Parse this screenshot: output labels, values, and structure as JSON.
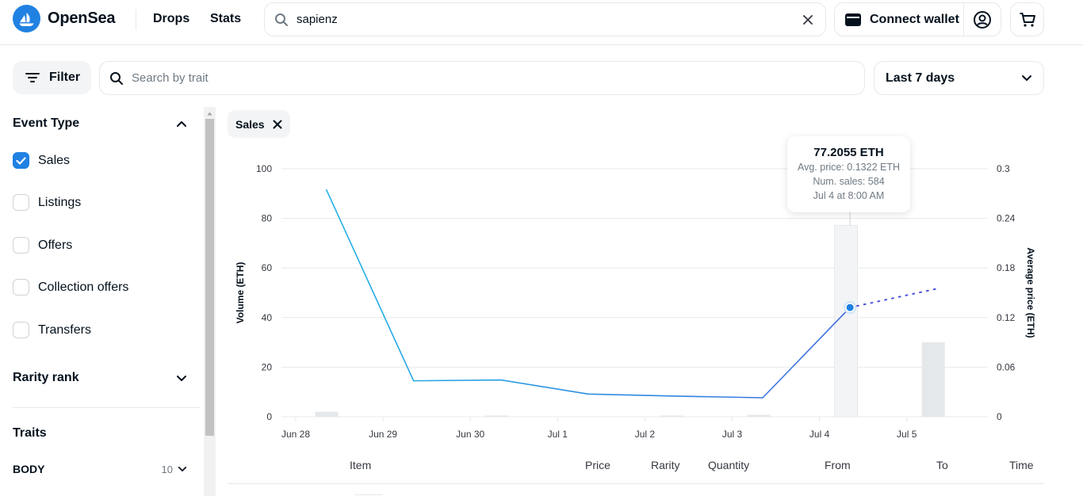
{
  "header": {
    "brand": "OpenSea",
    "nav": [
      "Drops",
      "Stats"
    ],
    "search_value": "sapienz",
    "connect_wallet": "Connect wallet"
  },
  "toolbar": {
    "filter_label": "Filter",
    "trait_search_placeholder": "Search by trait",
    "period": "Last 7 days"
  },
  "sidebar": {
    "event_type_title": "Event Type",
    "events": [
      {
        "label": "Sales",
        "checked": true
      },
      {
        "label": "Listings",
        "checked": false
      },
      {
        "label": "Offers",
        "checked": false
      },
      {
        "label": "Collection offers",
        "checked": false
      },
      {
        "label": "Transfers",
        "checked": false
      }
    ],
    "rarity_title": "Rarity rank",
    "traits_title": "Traits",
    "trait_rows": [
      {
        "label": "BODY",
        "count": "10"
      }
    ]
  },
  "filter_chip": "Sales",
  "tooltip": {
    "title": "77.2055 ETH",
    "avg_price": "Avg. price: 0.1322 ETH",
    "num_sales": "Num. sales: 584",
    "date": "Jul 4 at 8:00 AM"
  },
  "table_headers": [
    "Item",
    "Price",
    "Rarity",
    "Quantity",
    "From",
    "To",
    "Time"
  ],
  "colors": {
    "accent": "#2081e2",
    "line_blue": "#22b8e8",
    "line_indigo": "#4f55d8",
    "bar": "#e5e8eb"
  },
  "chart_data": {
    "type": "bar",
    "x_ticks": [
      "Jun 28",
      "Jun 29",
      "Jun 30",
      "Jul 1",
      "Jul 2",
      "Jul 3",
      "Jul 4",
      "Jul 5"
    ],
    "ylabel": "Volume (ETH)",
    "ylabel_right": "Average price (ETH)",
    "ylim": [
      0,
      100
    ],
    "ylim_right": [
      0,
      0.3
    ],
    "y_ticks": [
      0,
      20,
      40,
      60,
      80,
      100
    ],
    "y_ticks_right": [
      0,
      0.06,
      0.12,
      0.18,
      0.24,
      0.3
    ],
    "volume_bars": [
      {
        "x": 0.35,
        "value": 2
      },
      {
        "x": 2.3,
        "value": 0.5
      },
      {
        "x": 4.3,
        "value": 0.5
      },
      {
        "x": 5.3,
        "value": 0.8
      },
      {
        "x": 6.3,
        "value": 77.2055
      },
      {
        "x": 7.3,
        "value": 30
      }
    ],
    "avg_price_line": [
      {
        "x": 0.35,
        "y": 0.275
      },
      {
        "x": 1.35,
        "y": 0.0435
      },
      {
        "x": 2.35,
        "y": 0.0445
      },
      {
        "x": 3.35,
        "y": 0.0275
      },
      {
        "x": 4.35,
        "y": 0.025
      },
      {
        "x": 5.35,
        "y": 0.023
      },
      {
        "x": 6.35,
        "y": 0.1322
      },
      {
        "x": 7.35,
        "y": 0.155
      }
    ],
    "highlight_index": 6
  }
}
